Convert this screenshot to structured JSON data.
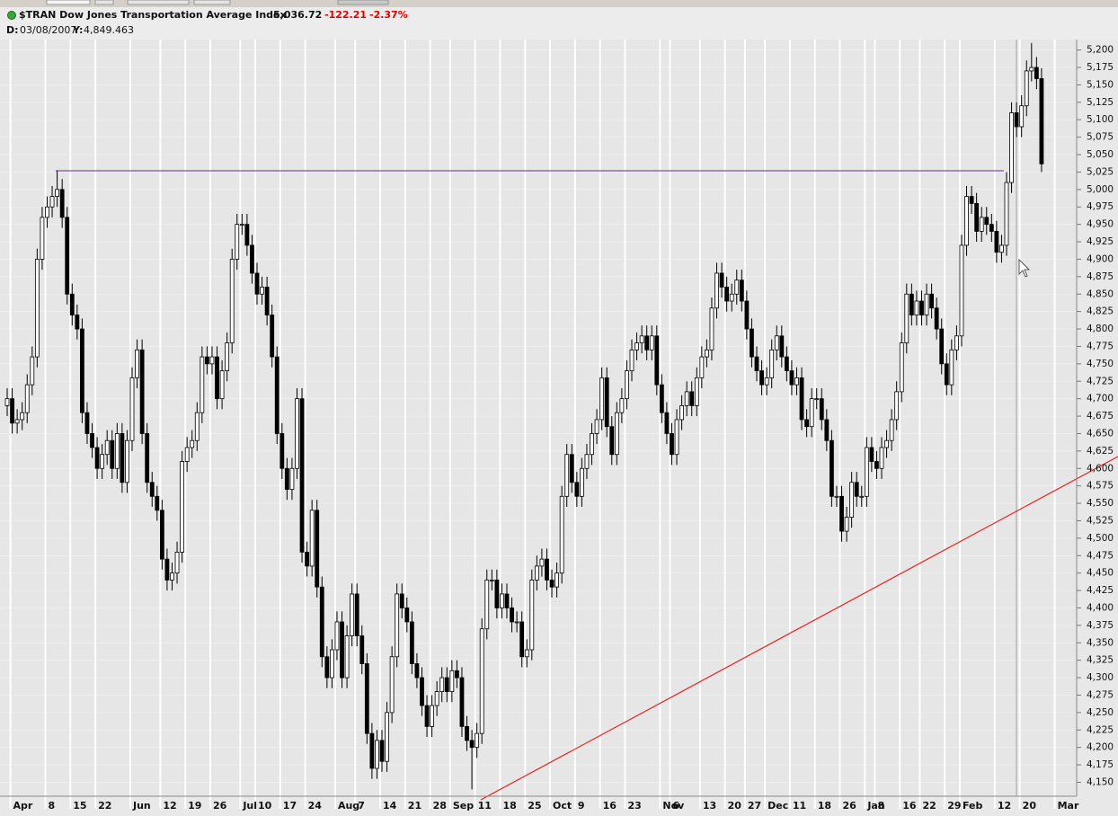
{
  "header": {
    "title": "$TRAN Dow Jones Transportation Average Index",
    "last": "5,036.72",
    "change": "-122.21",
    "change_pct": "-2.37%",
    "date_label": "D:",
    "date": "03/08/2007",
    "y_label": "Y:",
    "y_value": "4,849.463"
  },
  "chart_data": {
    "type": "candlestick",
    "categories": [
      null,
      "Apr",
      null,
      null,
      null,
      null,
      null,
      null,
      "8",
      null,
      null,
      null,
      null,
      "15",
      null,
      null,
      null,
      null,
      "22",
      null,
      null,
      null,
      null,
      null,
      null,
      "Jun",
      null,
      null,
      null,
      null,
      null,
      "12",
      null,
      null,
      null,
      null,
      "19",
      null,
      null,
      null,
      null,
      "26",
      null,
      null,
      null,
      null,
      null,
      "Jul",
      null,
      null,
      "10",
      null,
      null,
      null,
      null,
      "17",
      null,
      null,
      null,
      null,
      "24",
      null,
      null,
      null,
      null,
      null,
      "Aug",
      null,
      null,
      null,
      "7",
      null,
      null,
      null,
      null,
      "14",
      null,
      null,
      null,
      null,
      "21",
      null,
      null,
      null,
      null,
      "28",
      null,
      null,
      null,
      "Sep",
      null,
      null,
      null,
      null,
      "11",
      null,
      null,
      null,
      null,
      "18",
      null,
      null,
      null,
      null,
      "25",
      null,
      null,
      null,
      null,
      "Oct",
      null,
      null,
      null,
      null,
      "9",
      null,
      null,
      null,
      null,
      "16",
      null,
      null,
      null,
      null,
      "23",
      null,
      null,
      null,
      null,
      null,
      null,
      "Nov",
      null,
      "6",
      null,
      null,
      null,
      null,
      null,
      "13",
      null,
      null,
      null,
      null,
      "20",
      null,
      null,
      null,
      "27",
      null,
      null,
      null,
      "Dec",
      null,
      null,
      null,
      null,
      "11",
      null,
      null,
      null,
      null,
      "18",
      null,
      null,
      null,
      null,
      "26",
      null,
      null,
      null,
      null,
      "Jan",
      null,
      "8",
      null,
      null,
      null,
      null,
      "16",
      null,
      null,
      null,
      "22",
      null,
      null,
      null,
      null,
      "29",
      null,
      null,
      "Feb",
      null,
      null,
      null,
      null,
      null,
      null,
      "12",
      null,
      null,
      null,
      null,
      "20",
      null,
      null,
      null,
      null,
      null,
      null,
      "Mar",
      null,
      null,
      null
    ],
    "open": [
      4690,
      4700,
      4665,
      4670,
      4680,
      4720,
      4760,
      4900,
      4960,
      4975,
      4990,
      5000,
      4960,
      4850,
      4820,
      4800,
      4680,
      4650,
      4630,
      4600,
      4620,
      4640,
      4600,
      4650,
      4580,
      4640,
      4730,
      4770,
      4650,
      4580,
      4560,
      4540,
      4470,
      4440,
      4450,
      4480,
      4610,
      4630,
      4640,
      4680,
      4760,
      4750,
      4760,
      4700,
      4740,
      4780,
      4900,
      4950,
      4950,
      4920,
      4880,
      4850,
      4860,
      4820,
      4760,
      4650,
      4600,
      4570,
      4600,
      4700,
      4480,
      4460,
      4540,
      4430,
      4330,
      4300,
      4340,
      4380,
      4300,
      4360,
      4420,
      4360,
      4320,
      4220,
      4170,
      4210,
      4180,
      4250,
      4330,
      4420,
      4400,
      4380,
      4320,
      4300,
      4260,
      4230,
      4260,
      4280,
      4300,
      4280,
      4310,
      4300,
      4230,
      4210,
      4200,
      4220,
      4370,
      4440,
      4440,
      4400,
      4420,
      4400,
      4380,
      4380,
      4330,
      4340,
      4440,
      4460,
      4470,
      4440,
      4430,
      4450,
      4560,
      4620,
      4580,
      4560,
      4600,
      4620,
      4650,
      4670,
      4730,
      4660,
      4620,
      4680,
      4700,
      4740,
      4770,
      4780,
      4790,
      4770,
      4790,
      4720,
      4680,
      4650,
      4620,
      4670,
      4690,
      4710,
      4690,
      4730,
      4760,
      4770,
      4830,
      4880,
      4860,
      4840,
      4850,
      4870,
      4840,
      4800,
      4760,
      4740,
      4720,
      4730,
      4770,
      4790,
      4760,
      4740,
      4720,
      4730,
      4670,
      4660,
      4700,
      4700,
      4670,
      4640,
      4560,
      4560,
      4510,
      4530,
      4580,
      4560,
      4560,
      4630,
      4610,
      4600,
      4630,
      4640,
      4670,
      4710,
      4780,
      4850,
      4820,
      4840,
      4820,
      4850,
      4830,
      4800,
      4750,
      4720,
      4770,
      4790,
      4920,
      4990,
      4980,
      4940,
      4960,
      4950,
      4940,
      4910,
      4920,
      5010,
      5110,
      5090,
      5120,
      5170,
      5175,
      5158.93,
      null,
      null,
      null,
      null,
      null,
      null
    ],
    "high": [
      4715,
      4715,
      4685,
      4695,
      4735,
      4775,
      4915,
      4975,
      4990,
      5005,
      5027,
      5015,
      4975,
      4865,
      4835,
      4815,
      4695,
      4665,
      4645,
      4635,
      4655,
      4655,
      4665,
      4665,
      4655,
      4745,
      4785,
      4785,
      4665,
      4595,
      4575,
      4555,
      4485,
      4465,
      4495,
      4625,
      4645,
      4655,
      4695,
      4775,
      4775,
      4775,
      4775,
      4755,
      4795,
      4915,
      4965,
      4965,
      4965,
      4935,
      4895,
      4875,
      4875,
      4835,
      4775,
      4665,
      4615,
      4615,
      4715,
      4715,
      4495,
      4555,
      4555,
      4445,
      4345,
      4355,
      4395,
      4395,
      4375,
      4435,
      4435,
      4375,
      4335,
      4235,
      4225,
      4225,
      4265,
      4345,
      4435,
      4435,
      4415,
      4395,
      4335,
      4315,
      4275,
      4275,
      4295,
      4315,
      4315,
      4325,
      4325,
      4315,
      4245,
      4225,
      4235,
      4385,
      4455,
      4455,
      4455,
      4435,
      4435,
      4415,
      4395,
      4395,
      4355,
      4455,
      4475,
      4485,
      4485,
      4455,
      4465,
      4575,
      4635,
      4635,
      4595,
      4615,
      4635,
      4665,
      4685,
      4745,
      4745,
      4675,
      4695,
      4715,
      4755,
      4785,
      4795,
      4805,
      4805,
      4805,
      4805,
      4735,
      4695,
      4665,
      4685,
      4705,
      4725,
      4725,
      4745,
      4775,
      4785,
      4845,
      4895,
      4895,
      4875,
      4865,
      4885,
      4885,
      4855,
      4815,
      4775,
      4755,
      4745,
      4785,
      4805,
      4805,
      4775,
      4755,
      4745,
      4745,
      4685,
      4715,
      4715,
      4715,
      4685,
      4655,
      4575,
      4575,
      4545,
      4595,
      4595,
      4575,
      4645,
      4645,
      4625,
      4645,
      4655,
      4685,
      4725,
      4795,
      4865,
      4865,
      4855,
      4855,
      4865,
      4865,
      4845,
      4815,
      4765,
      4785,
      4805,
      4935,
      5005,
      5005,
      4995,
      4975,
      4975,
      4965,
      4955,
      4935,
      5025,
      5125,
      5125,
      5135,
      5185,
      5210,
      5190,
      5173.93,
      null,
      null,
      null,
      null,
      null,
      null
    ],
    "low": [
      4675,
      4650,
      4650,
      4655,
      4665,
      4705,
      4745,
      4885,
      4945,
      4960,
      4975,
      4945,
      4835,
      4805,
      4785,
      4665,
      4635,
      4615,
      4585,
      4585,
      4605,
      4585,
      4585,
      4565,
      4565,
      4625,
      4715,
      4635,
      4565,
      4545,
      4525,
      4455,
      4425,
      4425,
      4435,
      4465,
      4595,
      4615,
      4625,
      4665,
      4735,
      4735,
      4685,
      4685,
      4725,
      4765,
      4885,
      4935,
      4905,
      4865,
      4835,
      4835,
      4805,
      4745,
      4635,
      4585,
      4555,
      4555,
      4585,
      4465,
      4445,
      4445,
      4415,
      4315,
      4285,
      4285,
      4325,
      4285,
      4285,
      4345,
      4345,
      4305,
      4205,
      4155,
      4155,
      4165,
      4165,
      4235,
      4315,
      4385,
      4365,
      4305,
      4285,
      4245,
      4215,
      4215,
      4245,
      4265,
      4265,
      4265,
      4285,
      4215,
      4195,
      4140,
      4185,
      4205,
      4355,
      4425,
      4385,
      4385,
      4385,
      4365,
      4365,
      4315,
      4315,
      4325,
      4425,
      4445,
      4425,
      4415,
      4415,
      4435,
      4545,
      4565,
      4545,
      4545,
      4585,
      4605,
      4635,
      4655,
      4645,
      4605,
      4605,
      4665,
      4685,
      4725,
      4755,
      4765,
      4755,
      4755,
      4705,
      4665,
      4635,
      4605,
      4605,
      4655,
      4675,
      4675,
      4675,
      4715,
      4745,
      4755,
      4815,
      4845,
      4825,
      4825,
      4835,
      4825,
      4785,
      4745,
      4725,
      4705,
      4705,
      4715,
      4755,
      4745,
      4725,
      4705,
      4705,
      4655,
      4645,
      4645,
      4685,
      4655,
      4625,
      4545,
      4545,
      4495,
      4495,
      4515,
      4545,
      4545,
      4545,
      4595,
      4585,
      4585,
      4615,
      4625,
      4655,
      4695,
      4765,
      4805,
      4805,
      4805,
      4805,
      4815,
      4785,
      4735,
      4705,
      4705,
      4755,
      4775,
      4905,
      4965,
      4925,
      4925,
      4935,
      4925,
      4895,
      4895,
      4905,
      4995,
      5075,
      5075,
      5105,
      5155,
      5143.93,
      5025,
      null,
      null,
      null,
      null,
      null,
      null
    ],
    "close": [
      4700,
      4665,
      4670,
      4680,
      4720,
      4760,
      4900,
      4960,
      4975,
      4990,
      5000,
      4960,
      4850,
      4820,
      4800,
      4680,
      4650,
      4630,
      4600,
      4620,
      4640,
      4600,
      4650,
      4580,
      4640,
      4730,
      4770,
      4650,
      4580,
      4560,
      4540,
      4470,
      4440,
      4450,
      4480,
      4610,
      4630,
      4640,
      4680,
      4760,
      4750,
      4760,
      4700,
      4740,
      4780,
      4900,
      4950,
      4950,
      4920,
      4880,
      4850,
      4860,
      4820,
      4760,
      4650,
      4600,
      4570,
      4600,
      4700,
      4480,
      4460,
      4540,
      4430,
      4330,
      4300,
      4340,
      4380,
      4300,
      4360,
      4420,
      4360,
      4320,
      4220,
      4170,
      4210,
      4180,
      4250,
      4330,
      4420,
      4400,
      4380,
      4320,
      4300,
      4260,
      4230,
      4260,
      4280,
      4300,
      4280,
      4310,
      4300,
      4230,
      4210,
      4200,
      4220,
      4370,
      4440,
      4440,
      4400,
      4420,
      4400,
      4380,
      4380,
      4330,
      4340,
      4440,
      4460,
      4470,
      4440,
      4430,
      4450,
      4560,
      4620,
      4580,
      4560,
      4600,
      4620,
      4650,
      4670,
      4730,
      4660,
      4620,
      4680,
      4700,
      4740,
      4770,
      4780,
      4790,
      4770,
      4790,
      4720,
      4680,
      4650,
      4620,
      4670,
      4690,
      4710,
      4690,
      4730,
      4760,
      4770,
      4830,
      4880,
      4860,
      4840,
      4850,
      4870,
      4840,
      4800,
      4760,
      4740,
      4720,
      4730,
      4770,
      4790,
      4760,
      4740,
      4720,
      4730,
      4670,
      4660,
      4700,
      4700,
      4670,
      4640,
      4560,
      4560,
      4510,
      4530,
      4580,
      4560,
      4560,
      4630,
      4610,
      4600,
      4630,
      4640,
      4670,
      4710,
      4780,
      4850,
      4820,
      4840,
      4820,
      4850,
      4830,
      4800,
      4750,
      4720,
      4770,
      4790,
      4920,
      4990,
      4980,
      4940,
      4960,
      4950,
      4940,
      4910,
      4920,
      5010,
      5110,
      5090,
      5120,
      5170,
      5175,
      5158.93,
      5036.72,
      null,
      null,
      null,
      null,
      null,
      null
    ],
    "up_color": "#ffffff",
    "down_color": "#000000",
    "ylim": [
      4130,
      5215
    ],
    "yticks": [
      {
        "value": 4150,
        "label": "4,150"
      },
      {
        "value": 4175,
        "label": "4,175"
      },
      {
        "value": 4200,
        "label": "4,200"
      },
      {
        "value": 4225,
        "label": "4,225"
      },
      {
        "value": 4250,
        "label": "4,250"
      },
      {
        "value": 4275,
        "label": "4,275"
      },
      {
        "value": 4300,
        "label": "4,300"
      },
      {
        "value": 4325,
        "label": "4,325"
      },
      {
        "value": 4350,
        "label": "4,350"
      },
      {
        "value": 4375,
        "label": "4,375"
      },
      {
        "value": 4400,
        "label": "4,400"
      },
      {
        "value": 4425,
        "label": "4,425"
      },
      {
        "value": 4450,
        "label": "4,450"
      },
      {
        "value": 4475,
        "label": "4,475"
      },
      {
        "value": 4500,
        "label": "4,500"
      },
      {
        "value": 4525,
        "label": "4,525"
      },
      {
        "value": 4550,
        "label": "4,550"
      },
      {
        "value": 4575,
        "label": "4,575"
      },
      {
        "value": 4600,
        "label": "4,600"
      },
      {
        "value": 4625,
        "label": "4,625"
      },
      {
        "value": 4650,
        "label": "4,650"
      },
      {
        "value": 4675,
        "label": "4,675"
      },
      {
        "value": 4700,
        "label": "4,700"
      },
      {
        "value": 4725,
        "label": "4,725"
      },
      {
        "value": 4750,
        "label": "4,750"
      },
      {
        "value": 4775,
        "label": "4,775"
      },
      {
        "value": 4800,
        "label": "4,800"
      },
      {
        "value": 4825,
        "label": "4,825"
      },
      {
        "value": 4850,
        "label": "4,850"
      },
      {
        "value": 4875,
        "label": "4,875"
      },
      {
        "value": 4900,
        "label": "4,900"
      },
      {
        "value": 4925,
        "label": "4,925"
      },
      {
        "value": 4950,
        "label": "4,950"
      },
      {
        "value": 4975,
        "label": "4,975"
      },
      {
        "value": 5000,
        "label": "5,000"
      },
      {
        "value": 5025,
        "label": "5,025"
      },
      {
        "value": 5050,
        "label": "5,050"
      },
      {
        "value": 5075,
        "label": "5,075"
      },
      {
        "value": 5100,
        "label": "5,100"
      },
      {
        "value": 5125,
        "label": "5,125"
      },
      {
        "value": 5150,
        "label": "5,150"
      },
      {
        "value": 5175,
        "label": "5,175"
      },
      {
        "value": 5200,
        "label": "5,200"
      }
    ],
    "grid": true
  }
}
